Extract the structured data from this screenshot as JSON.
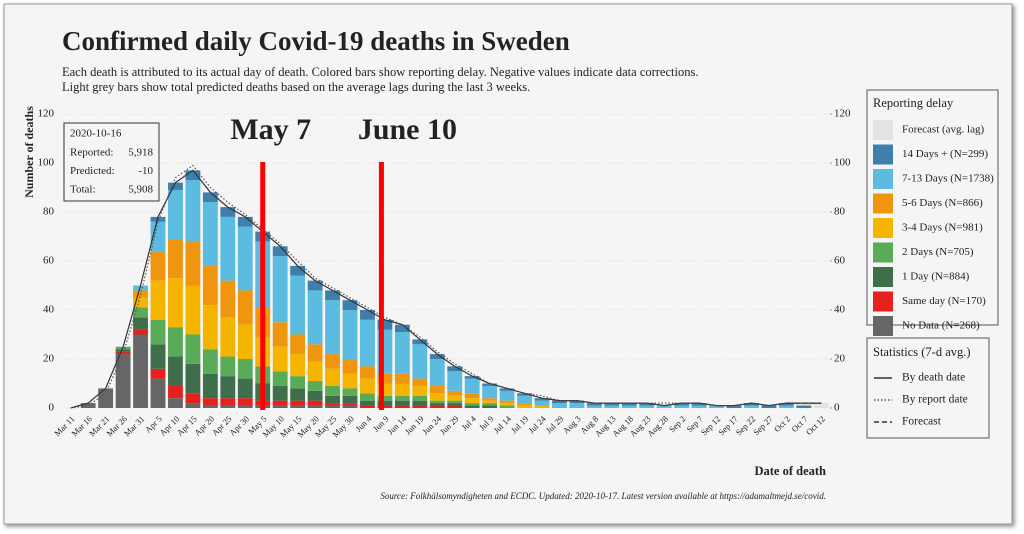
{
  "chart_data": {
    "type": "stacked_bar",
    "title": "Confirmed daily Covid-19 deaths in Sweden",
    "subtitle": [
      "Each death is attributed to its actual day of death. Colored bars show reporting delay. Negative values indicate data corrections.",
      "Light grey bars show total predicted deaths based on the average lags during the last 3 weeks."
    ],
    "y_label": "Number of deaths",
    "x_label": "Date of death",
    "source": "Source: Folkhälsomyndigheten and ECDC. Updated: 2020-10-17. Latest version available at https://adamaltmejd.se/covid.",
    "categories": [
      "Mar 11",
      "Mar 16",
      "Mar 21",
      "Mar 26",
      "Mar 31",
      "Apr 5",
      "Apr 10",
      "Apr 15",
      "Apr 20",
      "Apr 25",
      "Apr 30",
      "May 5",
      "May 10",
      "May 15",
      "May 20",
      "May 25",
      "May 30",
      "Jun 4",
      "Jun 9",
      "Jun 14",
      "Jun 19",
      "Jun 24",
      "Jun 29",
      "Jul 4",
      "Jul 9",
      "Jul 14",
      "Jul 19",
      "Jul 24",
      "Jul 29",
      "Aug 3",
      "Aug 8",
      "Aug 13",
      "Aug 18",
      "Aug 23",
      "Aug 28",
      "Sep 2",
      "Sep 7",
      "Sep 12",
      "Sep 17",
      "Sep 22",
      "Sep 27",
      "Oct 2",
      "Oct 7",
      "Oct 12"
    ],
    "legend_title": "Reporting delay",
    "series": [
      {
        "name": "Forecast (avg. lag)",
        "color": "#e3e3e3",
        "values": [
          0,
          0,
          0,
          0,
          0,
          0,
          0,
          0,
          0,
          0,
          0,
          0,
          0,
          0,
          0,
          0,
          0,
          0,
          0,
          0,
          0,
          0,
          0,
          0,
          0,
          0,
          0,
          0,
          0,
          0,
          0,
          0,
          0,
          0,
          0,
          0,
          0,
          0,
          0,
          0,
          0,
          0,
          1,
          2
        ]
      },
      {
        "name": "14 Days + (N=299)",
        "color": "#3f7fae",
        "values": [
          0,
          0,
          0,
          0,
          0,
          2,
          3,
          4,
          4,
          4,
          4,
          4,
          4,
          4,
          4,
          4,
          4,
          4,
          4,
          3,
          2,
          2,
          2,
          1,
          1,
          1,
          1,
          1,
          1,
          1,
          1,
          1,
          1,
          1,
          0,
          1,
          1,
          0,
          1,
          1,
          1,
          1,
          1,
          0
        ]
      },
      {
        "name": "7-13 Days (N=1738)",
        "color": "#5bbbe0",
        "values": [
          0,
          0,
          0,
          0,
          2,
          12,
          20,
          25,
          26,
          26,
          26,
          27,
          27,
          24,
          22,
          22,
          20,
          19,
          18,
          17,
          14,
          11,
          8,
          6,
          5,
          4,
          3,
          2,
          2,
          2,
          1,
          1,
          1,
          1,
          1,
          1,
          1,
          1,
          0,
          1,
          0,
          1,
          0,
          0
        ]
      },
      {
        "name": "5-6 Days (N=866)",
        "color": "#f0960e",
        "values": [
          0,
          0,
          0,
          0,
          3,
          12,
          16,
          18,
          16,
          15,
          14,
          12,
          10,
          8,
          7,
          6,
          6,
          5,
          4,
          4,
          3,
          3,
          2,
          2,
          1,
          1,
          1,
          0,
          0,
          0,
          0,
          0,
          0,
          0,
          0,
          0,
          0,
          0,
          0,
          0,
          0,
          0,
          0,
          0
        ]
      },
      {
        "name": "3-4 Days (N=981)",
        "color": "#f4b400",
        "values": [
          0,
          0,
          0,
          0,
          4,
          16,
          20,
          20,
          18,
          16,
          14,
          12,
          10,
          9,
          8,
          7,
          6,
          6,
          5,
          5,
          4,
          3,
          2,
          2,
          1,
          1,
          1,
          1,
          0,
          0,
          0,
          0,
          0,
          0,
          0,
          0,
          0,
          0,
          0,
          0,
          0,
          0,
          0,
          0
        ]
      },
      {
        "name": "2 Days (N=705)",
        "color": "#5aab57",
        "values": [
          0,
          0,
          0,
          1,
          4,
          10,
          12,
          12,
          10,
          8,
          8,
          7,
          6,
          5,
          4,
          4,
          3,
          3,
          2,
          2,
          2,
          1,
          1,
          1,
          1,
          1,
          0,
          0,
          0,
          0,
          0,
          0,
          0,
          0,
          0,
          0,
          0,
          0,
          0,
          0,
          0,
          0,
          0,
          0
        ]
      },
      {
        "name": "1 Day (N=884)",
        "color": "#3e6e4c",
        "values": [
          0,
          0,
          0,
          1,
          5,
          10,
          12,
          12,
          10,
          9,
          8,
          7,
          6,
          5,
          4,
          3,
          3,
          2,
          2,
          2,
          2,
          1,
          1,
          1,
          1,
          0,
          0,
          0,
          0,
          0,
          0,
          0,
          0,
          0,
          0,
          0,
          0,
          0,
          0,
          0,
          0,
          0,
          0,
          0
        ]
      },
      {
        "name": "Same day (N=170)",
        "color": "#e6201c",
        "values": [
          0,
          0,
          0,
          1,
          2,
          4,
          5,
          4,
          3,
          3,
          3,
          2,
          2,
          2,
          2,
          1,
          1,
          1,
          1,
          1,
          1,
          1,
          1,
          0,
          0,
          0,
          0,
          0,
          0,
          0,
          0,
          0,
          0,
          0,
          0,
          0,
          0,
          0,
          0,
          0,
          0,
          0,
          0,
          0
        ]
      },
      {
        "name": "No Data (N=268)",
        "color": "#666666",
        "values": [
          0,
          2,
          8,
          22,
          30,
          12,
          4,
          2,
          1,
          1,
          1,
          1,
          1,
          1,
          1,
          1,
          1,
          0,
          0,
          0,
          0,
          0,
          0,
          0,
          0,
          0,
          0,
          0,
          0,
          0,
          0,
          0,
          0,
          0,
          0,
          0,
          0,
          0,
          0,
          0,
          0,
          0,
          0,
          0
        ]
      }
    ],
    "stats_title": "Statistics (7-d avg.)",
    "lines": [
      {
        "name": "By death date",
        "style": "solid",
        "color": "#333333",
        "values": [
          0,
          2,
          8,
          25,
          50,
          78,
          92,
          97,
          88,
          82,
          78,
          72,
          66,
          58,
          52,
          48,
          44,
          40,
          36,
          34,
          28,
          22,
          17,
          13,
          10,
          8,
          6,
          4,
          3,
          3,
          2,
          2,
          2,
          2,
          1,
          2,
          2,
          1,
          1,
          2,
          1,
          2,
          2,
          2
        ]
      },
      {
        "name": "By report date",
        "style": "dotted",
        "color": "#555555",
        "values": [
          0,
          1,
          6,
          22,
          46,
          76,
          94,
          99,
          90,
          84,
          79,
          73,
          67,
          60,
          53,
          49,
          45,
          41,
          37,
          34,
          29,
          23,
          18,
          14,
          10,
          8,
          6,
          5,
          3,
          3,
          2,
          2,
          2,
          2,
          2,
          2,
          2,
          1,
          1,
          2,
          1,
          2,
          2,
          2
        ]
      },
      {
        "name": "Forecast",
        "style": "dashed",
        "color": "#333333",
        "values": [
          null,
          null,
          null,
          null,
          null,
          null,
          null,
          null,
          null,
          null,
          null,
          null,
          null,
          null,
          null,
          null,
          null,
          null,
          null,
          null,
          null,
          null,
          null,
          null,
          null,
          null,
          null,
          null,
          null,
          null,
          null,
          null,
          null,
          null,
          null,
          null,
          null,
          null,
          null,
          null,
          null,
          2,
          2,
          2
        ]
      }
    ],
    "ylim": [
      0,
      120
    ],
    "yticks": [
      0,
      20,
      40,
      60,
      80,
      100,
      120
    ],
    "y2lim": [
      0,
      120
    ],
    "y2ticks": [
      0,
      20,
      40,
      60,
      80,
      100,
      120
    ],
    "grid": true,
    "annotations": {
      "color": "#ff0000",
      "labels": [
        "May 7",
        "June 10"
      ]
    },
    "infobox": {
      "date": "2020-10-16",
      "rows": [
        [
          "Reported:",
          "5,918"
        ],
        [
          "Predicted:",
          "-10"
        ],
        [
          "Total:",
          "5,908"
        ]
      ]
    }
  }
}
